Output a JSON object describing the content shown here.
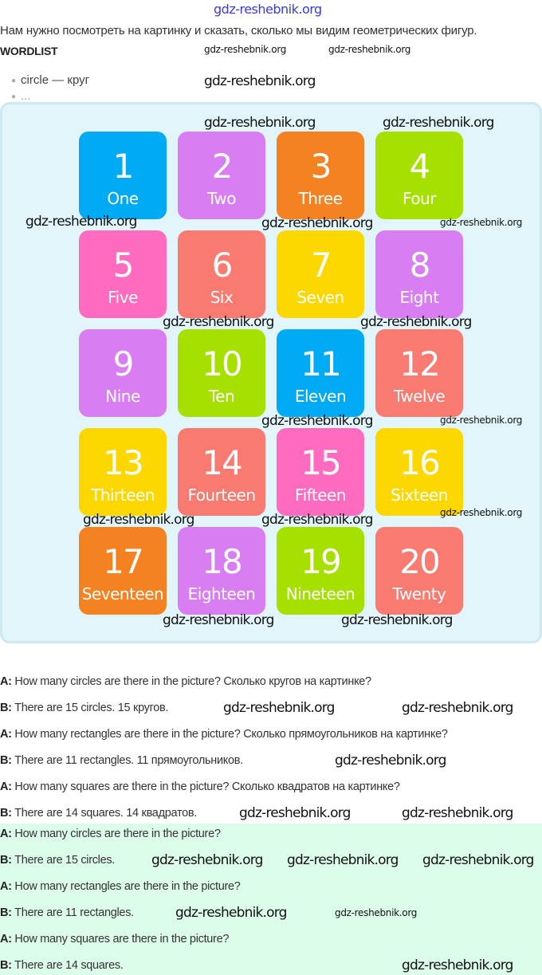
{
  "top_watermark": "gdz-reshebnik.org",
  "intro": "Нам нужно посмотреть на картинку и сказать, сколько мы видим геометрических фигур.",
  "wordlist_title": "WORDLIST",
  "wordlist": [
    "circle — круг",
    "..."
  ],
  "tiles": [
    {
      "num": "1",
      "word": "One",
      "color": "#00aaf5"
    },
    {
      "num": "2",
      "word": "Two",
      "color": "#d87ef2"
    },
    {
      "num": "3",
      "word": "Three",
      "color": "#f58220"
    },
    {
      "num": "4",
      "word": "Four",
      "color": "#a6e000"
    },
    {
      "num": "5",
      "word": "Five",
      "color": "#ff6cbf"
    },
    {
      "num": "6",
      "word": "Six",
      "color": "#f97a70"
    },
    {
      "num": "7",
      "word": "Seven",
      "color": "#fdd700"
    },
    {
      "num": "8",
      "word": "Eight",
      "color": "#d87ef2"
    },
    {
      "num": "9",
      "word": "Nine",
      "color": "#d87ef2"
    },
    {
      "num": "10",
      "word": "Ten",
      "color": "#a6e000"
    },
    {
      "num": "11",
      "word": "Eleven",
      "color": "#00aaf5"
    },
    {
      "num": "12",
      "word": "Twelve",
      "color": "#f97a70"
    },
    {
      "num": "13",
      "word": "Thirteen",
      "color": "#fdd700"
    },
    {
      "num": "14",
      "word": "Fourteen",
      "color": "#f97a70"
    },
    {
      "num": "15",
      "word": "Fifteen",
      "color": "#ff6cbf"
    },
    {
      "num": "16",
      "word": "Sixteen",
      "color": "#fdd700"
    },
    {
      "num": "17",
      "word": "Seventeen",
      "color": "#f58220"
    },
    {
      "num": "18",
      "word": "Eighteen",
      "color": "#d87ef2"
    },
    {
      "num": "19",
      "word": "Nineteen",
      "color": "#a6e000"
    },
    {
      "num": "20",
      "word": "Twenty",
      "color": "#f97a70"
    }
  ],
  "dialogue": [
    {
      "speaker": "A:",
      "text": " How many circles are there in the picture? Сколько кругов на картинке?"
    },
    {
      "speaker": "B:",
      "text": " There are 15 circles. 15 кругов."
    },
    {
      "speaker": "A:",
      "text": " How many rectangles are there in the picture? Сколько прямоугольников на картинке?"
    },
    {
      "speaker": "B:",
      "text": " There are 11 rectangles. 11 прямоугольников."
    },
    {
      "speaker": "A:",
      "text": " How many squares are there in the picture? Сколько квадратов на картинке?"
    },
    {
      "speaker": "B:",
      "text": " There are 14 squares. 14 квадратов."
    },
    {
      "speaker": "A:",
      "text": " How many circles are there in the picture?"
    },
    {
      "speaker": "B:",
      "text": " There are 15 circles."
    },
    {
      "speaker": "A:",
      "text": " How many rectangles are there in the picture?"
    },
    {
      "speaker": "B:",
      "text": " There are 11 rectangles."
    },
    {
      "speaker": "A:",
      "text": " How many squares are there in the picture?"
    },
    {
      "speaker": "B:",
      "text": " There are 14 squares."
    }
  ],
  "watermark": "gdz-reshebnik.org"
}
